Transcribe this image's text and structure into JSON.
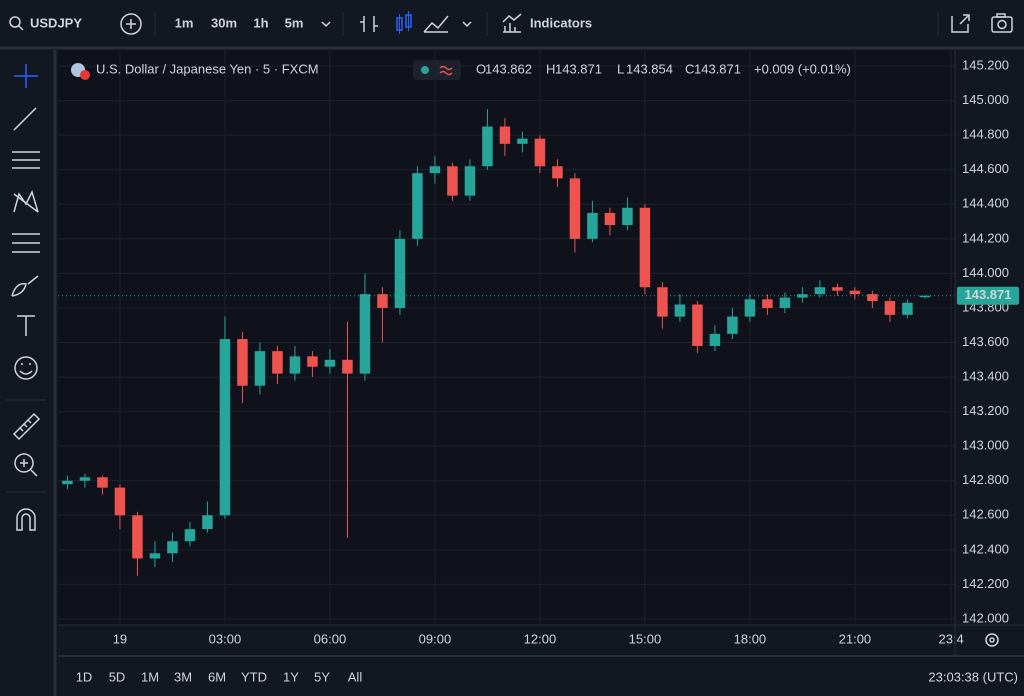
{
  "toolbar": {
    "symbol": "USDJPY",
    "intervals": [
      "1m",
      "30m",
      "1h",
      "5m"
    ],
    "active_interval": 3,
    "indicators": "Indicators"
  },
  "bottom_bar": {
    "ranges": [
      "1D",
      "5D",
      "1M",
      "3M",
      "6M",
      "YTD",
      "1Y",
      "5Y",
      "All"
    ],
    "clock": "23:03:38 (UTC)"
  },
  "chart_data": {
    "type": "candlestick",
    "title": "U.S. Dollar / Japanese Yen · 5 · FXCM",
    "legend_keys": [
      "O",
      "H",
      "L",
      "C"
    ],
    "change": "+0.009 (+0.01%)",
    "up_color": "#26a69a",
    "down_color": "#ef5350",
    "grid": true,
    "x": [
      -1.5,
      -1,
      -0.5,
      0,
      0.5,
      1,
      1.5,
      2,
      2.5,
      3,
      3.5,
      4,
      4.5,
      5,
      5.5,
      6,
      6.5,
      7,
      7.5,
      8,
      8.5,
      9,
      9.5,
      10,
      10.5,
      11,
      11.5,
      12,
      12.5,
      13,
      13.5,
      14,
      14.5,
      15,
      15.5,
      16,
      16.5,
      17,
      17.5,
      18,
      18.5,
      19,
      19.5,
      20,
      20.5,
      21,
      21.5,
      22,
      22.5,
      23
    ],
    "open": [
      142.78,
      142.8,
      142.82,
      142.76,
      142.6,
      142.35,
      142.38,
      142.45,
      142.52,
      142.6,
      143.62,
      143.35,
      143.55,
      143.42,
      143.52,
      143.46,
      143.5,
      143.42,
      143.88,
      143.8,
      144.2,
      144.58,
      144.62,
      144.45,
      144.62,
      144.85,
      144.75,
      144.78,
      144.62,
      144.55,
      144.2,
      144.35,
      144.28,
      144.38,
      143.92,
      143.75,
      143.82,
      143.58,
      143.65,
      143.75,
      143.85,
      143.8,
      143.86,
      143.88,
      143.92,
      143.9,
      143.88,
      143.84,
      143.76,
      143.862
    ],
    "high": [
      142.83,
      142.84,
      142.83,
      142.78,
      142.62,
      142.45,
      142.5,
      142.56,
      142.68,
      143.75,
      143.66,
      143.6,
      143.58,
      143.58,
      143.55,
      143.56,
      143.72,
      144.0,
      143.92,
      144.25,
      144.62,
      144.68,
      144.64,
      144.66,
      144.95,
      144.9,
      144.82,
      144.8,
      144.66,
      144.58,
      144.42,
      144.38,
      144.44,
      144.4,
      143.95,
      143.88,
      143.84,
      143.7,
      143.8,
      143.88,
      143.88,
      143.89,
      143.92,
      143.96,
      143.94,
      143.92,
      143.9,
      143.86,
      143.85,
      143.871
    ],
    "low": [
      142.75,
      142.76,
      142.72,
      142.52,
      142.25,
      142.3,
      142.33,
      142.42,
      142.5,
      142.58,
      143.25,
      143.3,
      143.36,
      143.38,
      143.4,
      143.42,
      142.47,
      143.38,
      143.6,
      143.76,
      144.16,
      144.52,
      144.42,
      144.42,
      144.6,
      144.68,
      144.7,
      144.58,
      144.5,
      144.12,
      144.18,
      144.22,
      144.25,
      143.88,
      143.68,
      143.72,
      143.54,
      143.55,
      143.62,
      143.72,
      143.76,
      143.77,
      143.83,
      143.86,
      143.87,
      143.85,
      143.8,
      143.72,
      143.74,
      143.854
    ],
    "close": [
      142.8,
      142.82,
      142.76,
      142.6,
      142.35,
      142.38,
      142.45,
      142.52,
      142.6,
      143.62,
      143.35,
      143.55,
      143.42,
      143.52,
      143.46,
      143.5,
      143.42,
      143.88,
      143.8,
      144.2,
      144.58,
      144.62,
      144.45,
      144.62,
      144.85,
      144.75,
      144.78,
      144.62,
      144.55,
      144.2,
      144.35,
      144.28,
      144.38,
      143.92,
      143.75,
      143.82,
      143.58,
      143.65,
      143.75,
      143.85,
      143.8,
      143.86,
      143.88,
      143.92,
      143.9,
      143.88,
      143.84,
      143.76,
      143.83,
      143.871
    ],
    "xlim": [
      -1.77,
      23.86
    ],
    "xticks": [
      {
        "value": 0,
        "label": "19"
      },
      {
        "value": 3,
        "label": "03:00"
      },
      {
        "value": 6,
        "label": "06:00"
      },
      {
        "value": 9,
        "label": "09:00"
      },
      {
        "value": 12,
        "label": "12:00"
      },
      {
        "value": 15,
        "label": "15:00"
      },
      {
        "value": 18,
        "label": "18:00"
      },
      {
        "value": 21,
        "label": "21:00"
      },
      {
        "value": 23.75,
        "label": "23:4"
      }
    ],
    "ylim": [
      141.965,
      145.293
    ],
    "yticks": [
      {
        "value": 142.0,
        "label": "142.000"
      },
      {
        "value": 142.2,
        "label": "142.200"
      },
      {
        "value": 142.4,
        "label": "142.400"
      },
      {
        "value": 142.6,
        "label": "142.600"
      },
      {
        "value": 142.8,
        "label": "142.800"
      },
      {
        "value": 143.0,
        "label": "143.000"
      },
      {
        "value": 143.2,
        "label": "143.200"
      },
      {
        "value": 143.4,
        "label": "143.400"
      },
      {
        "value": 143.6,
        "label": "143.600"
      },
      {
        "value": 143.8,
        "label": "143.800"
      },
      {
        "value": 144.0,
        "label": "144.000"
      },
      {
        "value": 144.2,
        "label": "144.200"
      },
      {
        "value": 144.4,
        "label": "144.400"
      },
      {
        "value": 144.6,
        "label": "144.600"
      },
      {
        "value": 144.8,
        "label": "144.800"
      },
      {
        "value": 145.0,
        "label": "145.000"
      },
      {
        "value": 145.2,
        "label": "145.200"
      }
    ]
  }
}
